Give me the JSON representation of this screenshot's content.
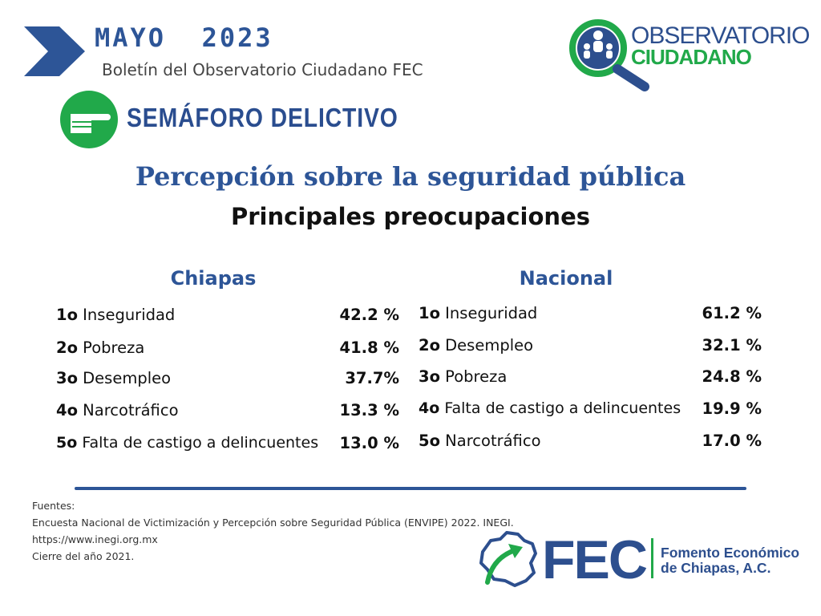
{
  "colors": {
    "brand_blue": "#2d5597",
    "brand_green": "#21a94a",
    "text": "#111111"
  },
  "header": {
    "month": "MAYO  2023",
    "bulletin": "Boletín del Observatorio Ciudadano FEC",
    "arrow_icon": "chevron-right-icon"
  },
  "logo": {
    "line1": "OBSERVATORIO",
    "line2": "CIUDADANO",
    "icon": "magnifier-people-icon"
  },
  "section": {
    "title": "SEMÁFORO DELICTIVO",
    "icon": "pointing-hand-icon"
  },
  "main": {
    "title": "Percepción sobre la seguridad pública",
    "subtitle": "Principales preocupaciones"
  },
  "chiapas": {
    "title": "Chiapas",
    "rows": [
      {
        "rank": "1o",
        "label": "Inseguridad",
        "value": "42.2 %"
      },
      {
        "rank": "2o",
        "label": "Pobreza",
        "value": "41.8 %"
      },
      {
        "rank": "3o",
        "label": "Desempleo",
        "value": "37.7%"
      },
      {
        "rank": "4o",
        "label": "Narcotráfico",
        "value": "13.3 %"
      },
      {
        "rank": "5o",
        "label": "Falta de castigo a delincuentes",
        "value": "13.0 %"
      }
    ]
  },
  "nacional": {
    "title": "Nacional",
    "rows": [
      {
        "rank": "1o",
        "label": "Inseguridad",
        "value": "61.2 %"
      },
      {
        "rank": "2o",
        "label": "Desempleo",
        "value": "32.1 %"
      },
      {
        "rank": "3o",
        "label": "Pobreza",
        "value": "24.8 %"
      },
      {
        "rank": "4o",
        "label": "Falta de castigo a delincuentes",
        "value": "19.9 %"
      },
      {
        "rank": "5o",
        "label": "Narcotráfico",
        "value": "17.0 %"
      }
    ]
  },
  "sources": {
    "heading": "Fuentes:",
    "line1": "Encuesta Nacional de Victimización y Percepción sobre Seguridad Pública (ENVIPE) 2022. INEGI.",
    "line2": "https://www.inegi.org.mx",
    "line3": "Cierre del año 2021."
  },
  "footer_logo": {
    "acronym": "FEC",
    "name_line1": "Fomento Económico",
    "name_line2": "de Chiapas, A.C.",
    "icon": "chiapas-map-arrow-icon"
  }
}
